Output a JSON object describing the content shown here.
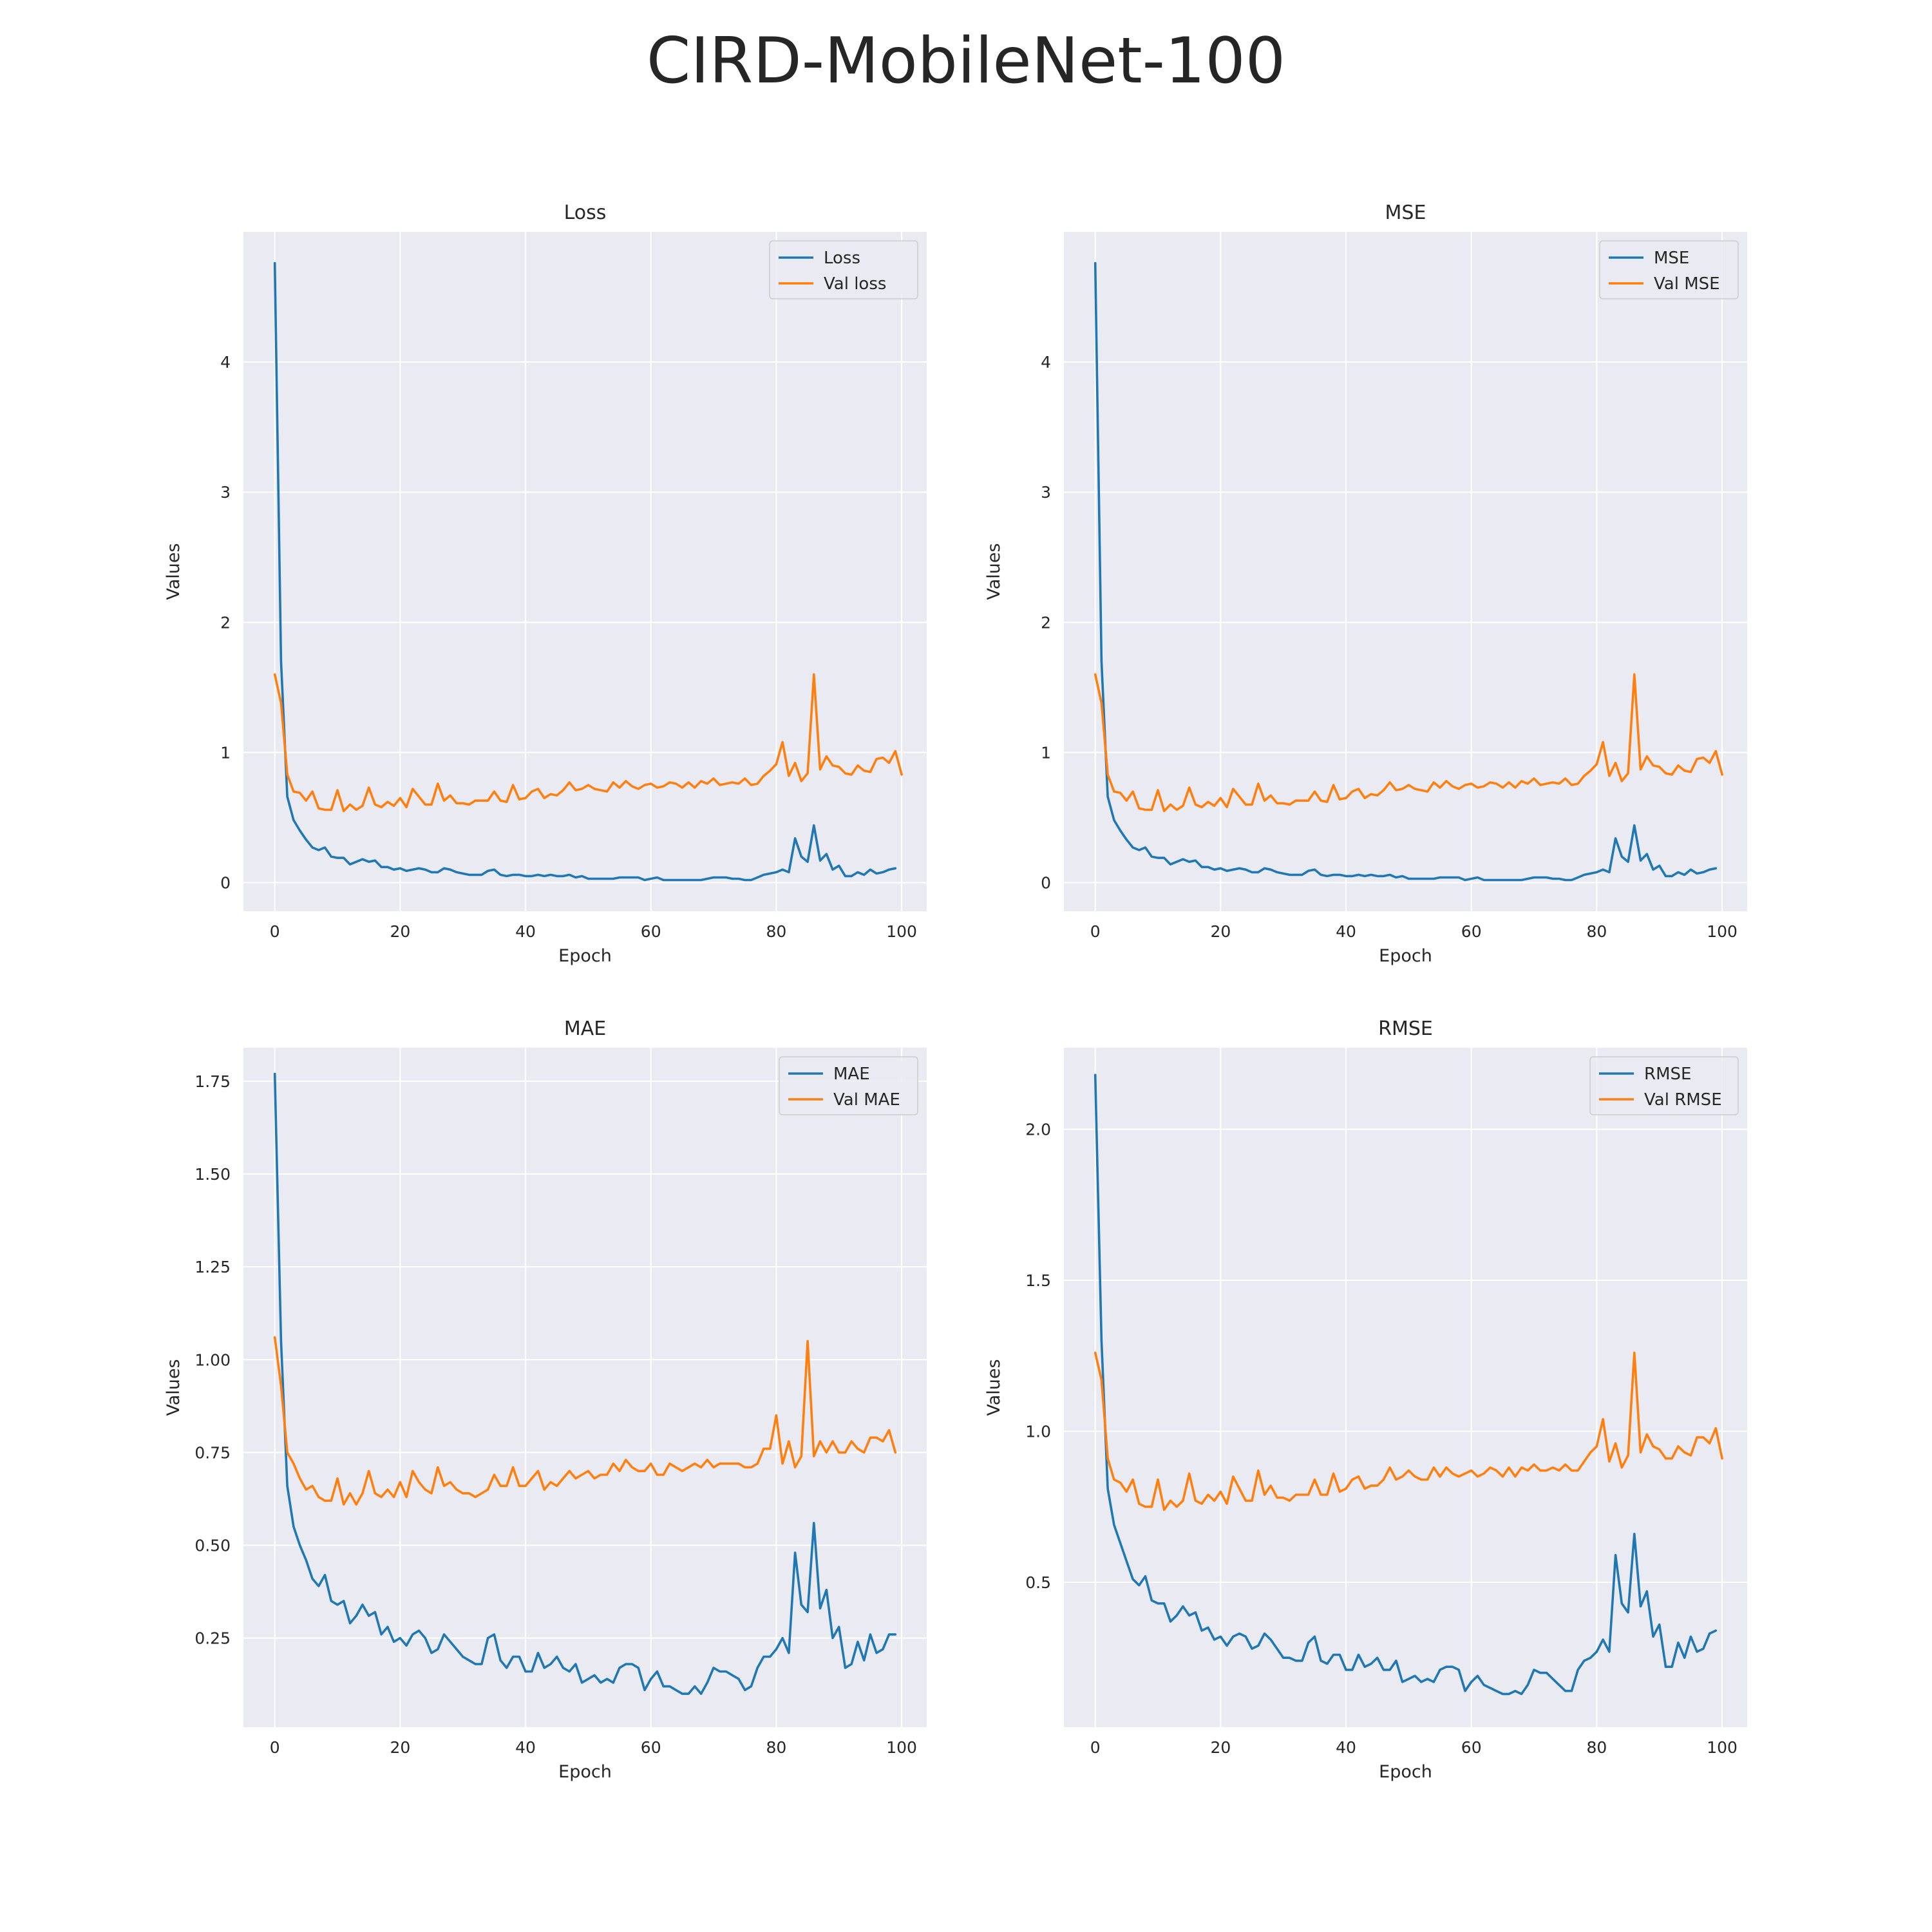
{
  "figure": {
    "title": "CIRD-MobileNet-100"
  },
  "colors": {
    "train": "#1f77b4",
    "val": "#ff7f0e",
    "plot_bg": "#eaeaf2",
    "grid": "#ffffff"
  },
  "chart_data": [
    {
      "type": "line",
      "title": "Loss",
      "xlabel": "Epoch",
      "ylabel": "Values",
      "xlim": [
        -5,
        104
      ],
      "ylim": [
        -0.22,
        5.0
      ],
      "xticks": [
        0,
        20,
        40,
        60,
        80,
        100
      ],
      "yticks": [
        0,
        1,
        2,
        3,
        4
      ],
      "ytick_labels": [
        "0",
        "1",
        "2",
        "3",
        "4"
      ],
      "grid": true,
      "legend": "top-right",
      "series": [
        {
          "name": "Loss",
          "color": "#1f77b4",
          "values": [
            4.76,
            1.7,
            0.66,
            0.48,
            0.4,
            0.33,
            0.27,
            0.25,
            0.27,
            0.2,
            0.19,
            0.19,
            0.14,
            0.16,
            0.18,
            0.16,
            0.17,
            0.12,
            0.12,
            0.1,
            0.11,
            0.09,
            0.1,
            0.11,
            0.1,
            0.08,
            0.08,
            0.11,
            0.1,
            0.08,
            0.07,
            0.06,
            0.06,
            0.06,
            0.09,
            0.1,
            0.06,
            0.05,
            0.06,
            0.06,
            0.05,
            0.05,
            0.06,
            0.05,
            0.06,
            0.05,
            0.05,
            0.06,
            0.04,
            0.05,
            0.03,
            0.03,
            0.03,
            0.03,
            0.03,
            0.04,
            0.04,
            0.04,
            0.04,
            0.02,
            0.03,
            0.04,
            0.02,
            0.02,
            0.02,
            0.02,
            0.02,
            0.02,
            0.02,
            0.03,
            0.04,
            0.04,
            0.04,
            0.03,
            0.03,
            0.02,
            0.02,
            0.04,
            0.06,
            0.07,
            0.08,
            0.1,
            0.08,
            0.34,
            0.2,
            0.16,
            0.44,
            0.17,
            0.22,
            0.1,
            0.13,
            0.05,
            0.05,
            0.08,
            0.06,
            0.1,
            0.07,
            0.08,
            0.1,
            0.11
          ]
        },
        {
          "name": "Val loss",
          "color": "#ff7f0e",
          "values": [
            1.6,
            1.38,
            0.83,
            0.7,
            0.69,
            0.63,
            0.7,
            0.57,
            0.56,
            0.56,
            0.71,
            0.55,
            0.6,
            0.56,
            0.59,
            0.73,
            0.6,
            0.58,
            0.62,
            0.59,
            0.65,
            0.58,
            0.72,
            0.66,
            0.6,
            0.6,
            0.76,
            0.63,
            0.67,
            0.61,
            0.61,
            0.6,
            0.63,
            0.63,
            0.63,
            0.7,
            0.63,
            0.62,
            0.75,
            0.64,
            0.65,
            0.7,
            0.72,
            0.65,
            0.68,
            0.67,
            0.71,
            0.77,
            0.71,
            0.72,
            0.75,
            0.72,
            0.71,
            0.7,
            0.77,
            0.73,
            0.78,
            0.74,
            0.72,
            0.75,
            0.76,
            0.73,
            0.74,
            0.77,
            0.76,
            0.73,
            0.77,
            0.73,
            0.78,
            0.76,
            0.8,
            0.75,
            0.76,
            0.77,
            0.76,
            0.8,
            0.75,
            0.76,
            0.82,
            0.86,
            0.91,
            1.08,
            0.82,
            0.92,
            0.78,
            0.84,
            1.6,
            0.87,
            0.97,
            0.9,
            0.89,
            0.84,
            0.83,
            0.9,
            0.86,
            0.85,
            0.95,
            0.96,
            0.92,
            1.01,
            0.83
          ]
        }
      ]
    },
    {
      "type": "line",
      "title": "MSE",
      "xlabel": "Epoch",
      "ylabel": "Values",
      "xlim": [
        -5,
        104
      ],
      "ylim": [
        -0.22,
        5.0
      ],
      "xticks": [
        0,
        20,
        40,
        60,
        80,
        100
      ],
      "yticks": [
        0,
        1,
        2,
        3,
        4
      ],
      "ytick_labels": [
        "0",
        "1",
        "2",
        "3",
        "4"
      ],
      "grid": true,
      "legend": "top-right",
      "series": [
        {
          "name": "MSE",
          "color": "#1f77b4",
          "values": [
            4.76,
            1.7,
            0.66,
            0.48,
            0.4,
            0.33,
            0.27,
            0.25,
            0.27,
            0.2,
            0.19,
            0.19,
            0.14,
            0.16,
            0.18,
            0.16,
            0.17,
            0.12,
            0.12,
            0.1,
            0.11,
            0.09,
            0.1,
            0.11,
            0.1,
            0.08,
            0.08,
            0.11,
            0.1,
            0.08,
            0.07,
            0.06,
            0.06,
            0.06,
            0.09,
            0.1,
            0.06,
            0.05,
            0.06,
            0.06,
            0.05,
            0.05,
            0.06,
            0.05,
            0.06,
            0.05,
            0.05,
            0.06,
            0.04,
            0.05,
            0.03,
            0.03,
            0.03,
            0.03,
            0.03,
            0.04,
            0.04,
            0.04,
            0.04,
            0.02,
            0.03,
            0.04,
            0.02,
            0.02,
            0.02,
            0.02,
            0.02,
            0.02,
            0.02,
            0.03,
            0.04,
            0.04,
            0.04,
            0.03,
            0.03,
            0.02,
            0.02,
            0.04,
            0.06,
            0.07,
            0.08,
            0.1,
            0.08,
            0.34,
            0.2,
            0.16,
            0.44,
            0.17,
            0.22,
            0.1,
            0.13,
            0.05,
            0.05,
            0.08,
            0.06,
            0.1,
            0.07,
            0.08,
            0.1,
            0.11
          ]
        },
        {
          "name": "Val MSE",
          "color": "#ff7f0e",
          "values": [
            1.6,
            1.38,
            0.83,
            0.7,
            0.69,
            0.63,
            0.7,
            0.57,
            0.56,
            0.56,
            0.71,
            0.55,
            0.6,
            0.56,
            0.59,
            0.73,
            0.6,
            0.58,
            0.62,
            0.59,
            0.65,
            0.58,
            0.72,
            0.66,
            0.6,
            0.6,
            0.76,
            0.63,
            0.67,
            0.61,
            0.61,
            0.6,
            0.63,
            0.63,
            0.63,
            0.7,
            0.63,
            0.62,
            0.75,
            0.64,
            0.65,
            0.7,
            0.72,
            0.65,
            0.68,
            0.67,
            0.71,
            0.77,
            0.71,
            0.72,
            0.75,
            0.72,
            0.71,
            0.7,
            0.77,
            0.73,
            0.78,
            0.74,
            0.72,
            0.75,
            0.76,
            0.73,
            0.74,
            0.77,
            0.76,
            0.73,
            0.77,
            0.73,
            0.78,
            0.76,
            0.8,
            0.75,
            0.76,
            0.77,
            0.76,
            0.8,
            0.75,
            0.76,
            0.82,
            0.86,
            0.91,
            1.08,
            0.82,
            0.92,
            0.78,
            0.84,
            1.6,
            0.87,
            0.97,
            0.9,
            0.89,
            0.84,
            0.83,
            0.9,
            0.86,
            0.85,
            0.95,
            0.96,
            0.92,
            1.01,
            0.83
          ]
        }
      ]
    },
    {
      "type": "line",
      "title": "MAE",
      "xlabel": "Epoch",
      "ylabel": "Values",
      "xlim": [
        -5,
        104
      ],
      "ylim": [
        0.01,
        1.84
      ],
      "xticks": [
        0,
        20,
        40,
        60,
        80,
        100
      ],
      "yticks": [
        0.25,
        0.5,
        0.75,
        1.0,
        1.25,
        1.5,
        1.75
      ],
      "ytick_labels": [
        "0.25",
        "0.50",
        "0.75",
        "1.00",
        "1.25",
        "1.50",
        "1.75"
      ],
      "grid": true,
      "legend": "top-right",
      "series": [
        {
          "name": "MAE",
          "color": "#1f77b4",
          "values": [
            1.77,
            1.05,
            0.66,
            0.55,
            0.5,
            0.46,
            0.41,
            0.39,
            0.42,
            0.35,
            0.34,
            0.35,
            0.29,
            0.31,
            0.34,
            0.31,
            0.32,
            0.26,
            0.28,
            0.24,
            0.25,
            0.23,
            0.26,
            0.27,
            0.25,
            0.21,
            0.22,
            0.26,
            0.24,
            0.22,
            0.2,
            0.19,
            0.18,
            0.18,
            0.25,
            0.26,
            0.19,
            0.17,
            0.2,
            0.2,
            0.16,
            0.16,
            0.21,
            0.17,
            0.18,
            0.2,
            0.17,
            0.16,
            0.18,
            0.13,
            0.14,
            0.15,
            0.13,
            0.14,
            0.13,
            0.17,
            0.18,
            0.18,
            0.17,
            0.11,
            0.14,
            0.16,
            0.12,
            0.12,
            0.11,
            0.1,
            0.1,
            0.12,
            0.1,
            0.13,
            0.17,
            0.16,
            0.16,
            0.15,
            0.14,
            0.11,
            0.12,
            0.17,
            0.2,
            0.2,
            0.22,
            0.25,
            0.21,
            0.48,
            0.34,
            0.32,
            0.56,
            0.33,
            0.38,
            0.25,
            0.28,
            0.17,
            0.18,
            0.24,
            0.19,
            0.26,
            0.21,
            0.22,
            0.26,
            0.26
          ]
        },
        {
          "name": "Val MAE",
          "color": "#ff7f0e",
          "values": [
            1.06,
            0.93,
            0.75,
            0.72,
            0.68,
            0.65,
            0.66,
            0.63,
            0.62,
            0.62,
            0.68,
            0.61,
            0.64,
            0.61,
            0.64,
            0.7,
            0.64,
            0.63,
            0.65,
            0.63,
            0.67,
            0.63,
            0.7,
            0.67,
            0.65,
            0.64,
            0.71,
            0.66,
            0.67,
            0.65,
            0.64,
            0.64,
            0.63,
            0.64,
            0.65,
            0.69,
            0.66,
            0.66,
            0.71,
            0.66,
            0.66,
            0.68,
            0.7,
            0.65,
            0.67,
            0.66,
            0.68,
            0.7,
            0.68,
            0.69,
            0.7,
            0.68,
            0.69,
            0.69,
            0.72,
            0.7,
            0.73,
            0.71,
            0.7,
            0.7,
            0.72,
            0.69,
            0.69,
            0.72,
            0.71,
            0.7,
            0.71,
            0.72,
            0.71,
            0.73,
            0.71,
            0.72,
            0.72,
            0.72,
            0.72,
            0.71,
            0.71,
            0.72,
            0.76,
            0.76,
            0.85,
            0.72,
            0.78,
            0.71,
            0.74,
            1.05,
            0.74,
            0.78,
            0.75,
            0.78,
            0.75,
            0.75,
            0.78,
            0.76,
            0.75,
            0.79,
            0.79,
            0.78,
            0.81,
            0.75
          ]
        }
      ]
    },
    {
      "type": "line",
      "title": "RMSE",
      "xlabel": "Epoch",
      "ylabel": "Values",
      "xlim": [
        -5,
        104
      ],
      "ylim": [
        0.02,
        2.27
      ],
      "xticks": [
        0,
        20,
        40,
        60,
        80,
        100
      ],
      "yticks": [
        0.5,
        1.0,
        1.5,
        2.0
      ],
      "ytick_labels": [
        "0.5",
        "1.0",
        "1.5",
        "2.0"
      ],
      "grid": true,
      "legend": "top-right",
      "series": [
        {
          "name": "RMSE",
          "color": "#1f77b4",
          "values": [
            2.18,
            1.3,
            0.81,
            0.69,
            0.63,
            0.57,
            0.51,
            0.49,
            0.52,
            0.44,
            0.43,
            0.43,
            0.37,
            0.39,
            0.42,
            0.39,
            0.4,
            0.34,
            0.35,
            0.31,
            0.32,
            0.29,
            0.32,
            0.33,
            0.32,
            0.28,
            0.29,
            0.33,
            0.31,
            0.28,
            0.25,
            0.25,
            0.24,
            0.24,
            0.3,
            0.32,
            0.24,
            0.23,
            0.26,
            0.26,
            0.21,
            0.21,
            0.26,
            0.22,
            0.23,
            0.25,
            0.21,
            0.21,
            0.24,
            0.17,
            0.18,
            0.19,
            0.17,
            0.18,
            0.17,
            0.21,
            0.22,
            0.22,
            0.21,
            0.14,
            0.17,
            0.19,
            0.16,
            0.15,
            0.14,
            0.13,
            0.13,
            0.14,
            0.13,
            0.16,
            0.21,
            0.2,
            0.2,
            0.18,
            0.16,
            0.14,
            0.14,
            0.21,
            0.24,
            0.25,
            0.27,
            0.31,
            0.27,
            0.59,
            0.43,
            0.4,
            0.66,
            0.42,
            0.47,
            0.32,
            0.36,
            0.22,
            0.22,
            0.3,
            0.25,
            0.32,
            0.27,
            0.28,
            0.33,
            0.34
          ]
        },
        {
          "name": "Val RMSE",
          "color": "#ff7f0e",
          "values": [
            1.26,
            1.17,
            0.91,
            0.84,
            0.83,
            0.8,
            0.84,
            0.76,
            0.75,
            0.75,
            0.84,
            0.74,
            0.77,
            0.75,
            0.77,
            0.86,
            0.77,
            0.76,
            0.79,
            0.77,
            0.8,
            0.76,
            0.85,
            0.81,
            0.77,
            0.77,
            0.87,
            0.79,
            0.82,
            0.78,
            0.78,
            0.77,
            0.79,
            0.79,
            0.79,
            0.84,
            0.79,
            0.79,
            0.86,
            0.8,
            0.81,
            0.84,
            0.85,
            0.81,
            0.82,
            0.82,
            0.84,
            0.88,
            0.84,
            0.85,
            0.87,
            0.85,
            0.84,
            0.84,
            0.88,
            0.85,
            0.88,
            0.86,
            0.85,
            0.86,
            0.87,
            0.85,
            0.86,
            0.88,
            0.87,
            0.85,
            0.88,
            0.85,
            0.88,
            0.87,
            0.89,
            0.87,
            0.87,
            0.88,
            0.87,
            0.89,
            0.87,
            0.87,
            0.9,
            0.93,
            0.95,
            1.04,
            0.9,
            0.96,
            0.88,
            0.92,
            1.26,
            0.93,
            0.99,
            0.95,
            0.94,
            0.91,
            0.91,
            0.95,
            0.93,
            0.92,
            0.98,
            0.98,
            0.96,
            1.01,
            0.91
          ]
        }
      ]
    }
  ]
}
